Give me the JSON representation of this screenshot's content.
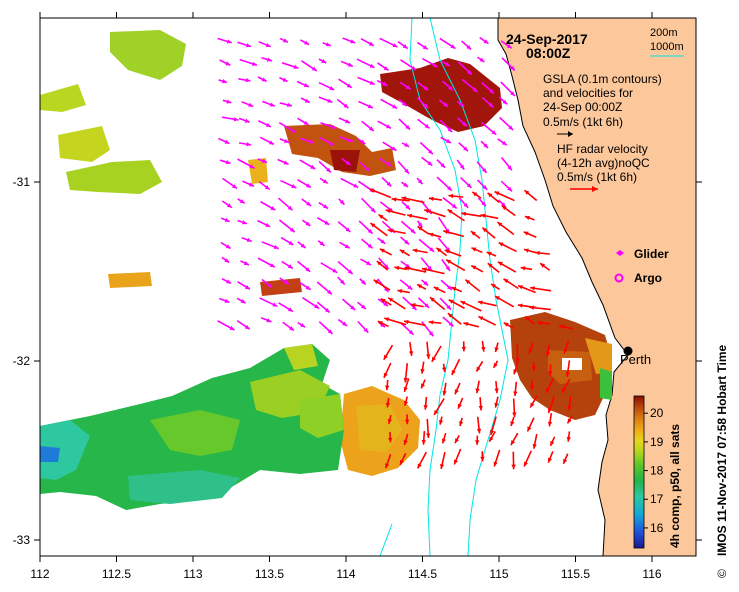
{
  "map": {
    "date": "24-Sep-2017",
    "time": "08:00Z",
    "timestamp_side": "IMOS 11-Nov-2017 07:58 Hobart Time",
    "copyright": "©",
    "place": "Perth"
  },
  "bathymetry": {
    "contour_200": "200m",
    "contour_1000": "1000m",
    "line_color": "#00e5e5"
  },
  "legend": {
    "gsla_line1": "GSLA (0.1m contours)",
    "gsla_line2": "and velocities for",
    "gsla_line3": "24-Sep 00:00Z",
    "gsla_scale": "0.5m/s (1kt 6h)",
    "hf_line1": "HF radar velocity",
    "hf_line2": "(4-12h avg)noQC",
    "hf_scale": "0.5m/s (1kt 6h)",
    "glider": "Glider",
    "argo": "Argo",
    "gsla_arrow_color": "#ff00ff",
    "hf_arrow_color": "#ff0000",
    "land_color": "#fcc79a"
  },
  "axes": {
    "x_ticks": [
      "112",
      "112.5",
      "113",
      "113.5",
      "114",
      "114.5",
      "115",
      "115.5",
      "116"
    ],
    "y_ticks": [
      "-31",
      "-32",
      "-33"
    ]
  },
  "colorbar": {
    "label": "4h comp, p50, all sats",
    "ticks": [
      "20",
      "19",
      "18",
      "17",
      "16"
    ],
    "range": [
      15.3,
      20.6
    ]
  }
}
